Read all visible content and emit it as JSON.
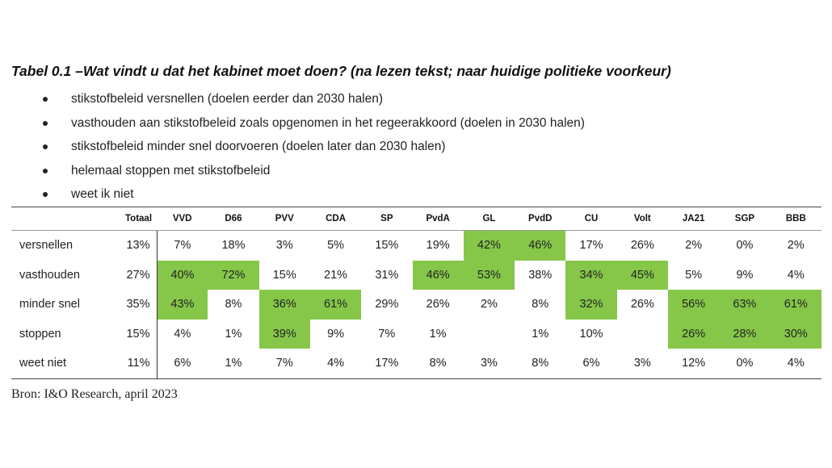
{
  "title": "Tabel 0.1  –Wat vindt u dat het kabinet moet doen? (na lezen tekst; naar huidige politieke voorkeur)",
  "bullets": [
    "stikstofbeleid versnellen (doelen eerder dan 2030 halen)",
    "vasthouden aan stikstofbeleid zoals opgenomen in het regeerakkoord (doelen in 2030 halen)",
    "stikstofbeleid minder snel doorvoeren (doelen later dan 2030 halen)",
    "helemaal stoppen met stikstofbeleid",
    "weet ik niet"
  ],
  "table": {
    "total_header": "Totaal",
    "columns": [
      "VVD",
      "D66",
      "PVV",
      "CDA",
      "SP",
      "PvdA",
      "GL",
      "PvdD",
      "CU",
      "Volt",
      "JA21",
      "SGP",
      "BBB"
    ],
    "highlight_color": "#86c74a",
    "rows": [
      {
        "label": "versnellen",
        "total": "13%",
        "values": [
          "7%",
          "18%",
          "3%",
          "5%",
          "15%",
          "19%",
          "42%",
          "46%",
          "17%",
          "26%",
          "2%",
          "0%",
          "2%"
        ],
        "highlight": [
          false,
          false,
          false,
          false,
          false,
          false,
          true,
          true,
          false,
          false,
          false,
          false,
          false
        ]
      },
      {
        "label": "vasthouden",
        "total": "27%",
        "values": [
          "40%",
          "72%",
          "15%",
          "21%",
          "31%",
          "46%",
          "53%",
          "38%",
          "34%",
          "45%",
          "5%",
          "9%",
          "4%"
        ],
        "highlight": [
          true,
          true,
          false,
          false,
          false,
          true,
          true,
          false,
          true,
          true,
          false,
          false,
          false
        ]
      },
      {
        "label": "minder snel",
        "total": "35%",
        "values": [
          "43%",
          "8%",
          "36%",
          "61%",
          "29%",
          "26%",
          "2%",
          "8%",
          "32%",
          "26%",
          "56%",
          "63%",
          "61%"
        ],
        "highlight": [
          true,
          false,
          true,
          true,
          false,
          false,
          false,
          false,
          true,
          false,
          true,
          true,
          true
        ]
      },
      {
        "label": "stoppen",
        "total": "15%",
        "values": [
          "4%",
          "1%",
          "39%",
          "9%",
          "7%",
          "1%",
          "",
          "1%",
          "10%",
          "",
          "26%",
          "28%",
          "30%"
        ],
        "highlight": [
          false,
          false,
          true,
          false,
          false,
          false,
          false,
          false,
          false,
          false,
          true,
          true,
          true
        ]
      },
      {
        "label": "weet niet",
        "total": "11%",
        "values": [
          "6%",
          "1%",
          "7%",
          "4%",
          "17%",
          "8%",
          "3%",
          "8%",
          "6%",
          "3%",
          "12%",
          "0%",
          "4%"
        ],
        "highlight": [
          false,
          false,
          false,
          false,
          false,
          false,
          false,
          false,
          false,
          false,
          false,
          false,
          false
        ]
      }
    ]
  },
  "source": "Bron: I&O Research, april 2023"
}
